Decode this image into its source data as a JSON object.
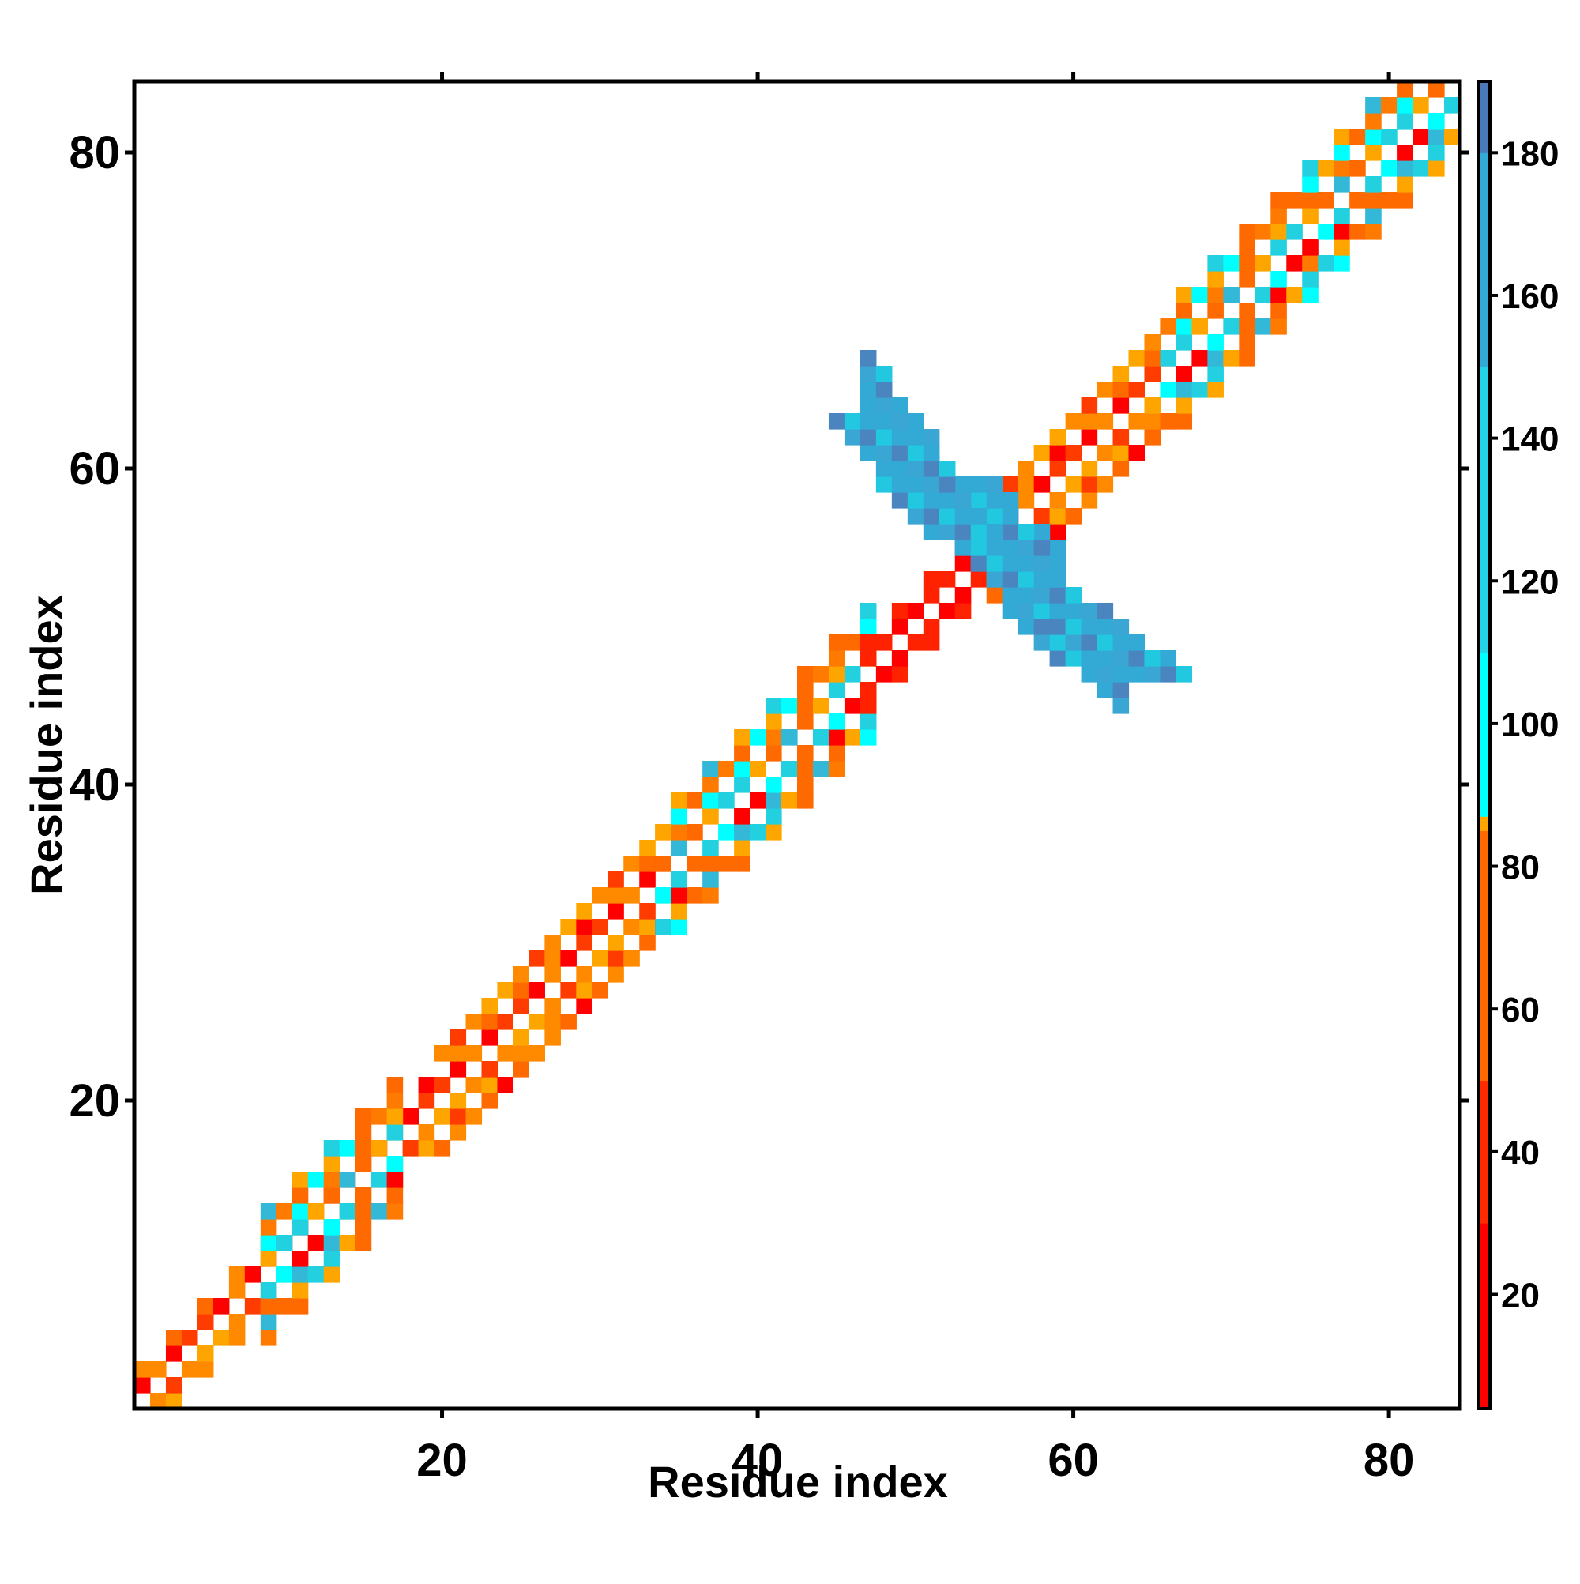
{
  "chart_data": {
    "type": "heatmap",
    "title": "",
    "xlabel": "Residue index",
    "ylabel": "Residue index",
    "xlim": [
      0.5,
      84.5
    ],
    "ylim": [
      0.5,
      84.5
    ],
    "x_ticks": [
      20,
      40,
      60,
      80
    ],
    "y_ticks": [
      20,
      40,
      60,
      80
    ],
    "grid": false,
    "colorbar": {
      "range": [
        4,
        190
      ],
      "ticks": [
        20,
        40,
        60,
        80,
        100,
        120,
        140,
        160,
        180
      ],
      "colors": {
        "low": "#ff0000",
        "low_mid": "#ff6a00",
        "mid": "#ffa500",
        "mid_high": "#00ffff",
        "high": "#33b0d8",
        "top": "#4a7ab8"
      }
    },
    "cells_note_colors": {
      "0_20": "#ff0000",
      "20_40": "#ff3d00",
      "40_60": "#ff7a00",
      "60_80": "#ffa500",
      "100_120": "#22ffff",
      "120_140": "#22ccdd",
      "140_160": "#33aad6",
      "160_180": "#4a85c0"
    },
    "segments": [
      {
        "x0": 1,
        "x1": 20,
        "y0": 1,
        "y1": 20,
        "palette": "warm",
        "width": 2
      },
      {
        "x0": 9,
        "x1": 17,
        "y0": 9,
        "y1": 17,
        "palette": "mixed",
        "width": 4
      },
      {
        "x0": 20,
        "x1": 34,
        "y0": 20,
        "y1": 34,
        "palette": "warm",
        "width": 3
      },
      {
        "x0": 34,
        "x1": 47,
        "y0": 34,
        "y1": 47,
        "palette": "mixed",
        "width": 4
      },
      {
        "x0": 47,
        "x1": 55,
        "y0": 47,
        "y1": 55,
        "palette": "red",
        "width": 2
      },
      {
        "x0": 55,
        "x1": 66,
        "y0": 55,
        "y1": 66,
        "palette": "warm",
        "width": 3
      },
      {
        "x0": 66,
        "x1": 84,
        "y0": 66,
        "y1": 84,
        "palette": "mixed",
        "width": 4
      }
    ],
    "antiparallel_blocks": [
      {
        "x_from": 47,
        "x_to": 53,
        "y_from": 65,
        "y_to": 57,
        "value": 140
      },
      {
        "x_from": 53,
        "x_to": 59,
        "y_from": 57,
        "y_to": 53,
        "value": 130
      },
      {
        "x_from": 56,
        "x_to": 63,
        "y_from": 53,
        "y_to": 47,
        "value": 140
      }
    ]
  }
}
